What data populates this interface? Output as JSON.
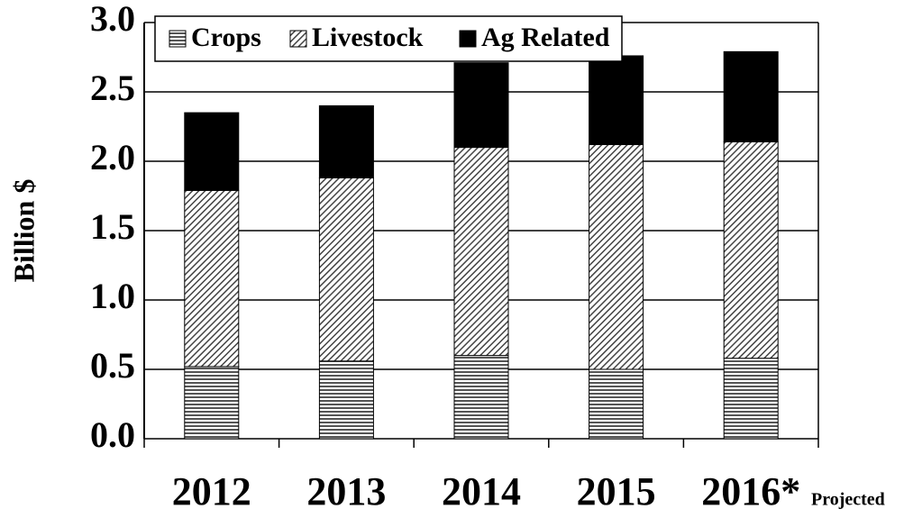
{
  "chart_data": {
    "type": "bar",
    "stacked": true,
    "y_label": "Billion $",
    "annotation": "Projected",
    "categories": [
      "2012",
      "2013",
      "2014",
      "2015",
      "2016*"
    ],
    "series": [
      {
        "name": "Crops",
        "color": "#555555",
        "pattern": "horizontal",
        "values": [
          0.52,
          0.56,
          0.6,
          0.5,
          0.58
        ]
      },
      {
        "name": "Livestock",
        "color": "#555555",
        "pattern": "diagonal",
        "values": [
          1.27,
          1.32,
          1.5,
          1.62,
          1.56
        ]
      },
      {
        "name": "Ag Related",
        "color": "#000000",
        "pattern": "solid",
        "values": [
          0.56,
          0.52,
          0.61,
          0.64,
          0.65
        ]
      }
    ],
    "ylim": [
      0,
      3
    ],
    "yticks": [
      {
        "value": 0,
        "label": "0.0"
      },
      0.5,
      {
        "value": 1,
        "label": "1.0"
      },
      1.5,
      {
        "value": 2,
        "label": "2.0"
      },
      2.5,
      {
        "value": 3,
        "label": "3.0"
      }
    ],
    "grid": true,
    "legend": "top-left"
  }
}
